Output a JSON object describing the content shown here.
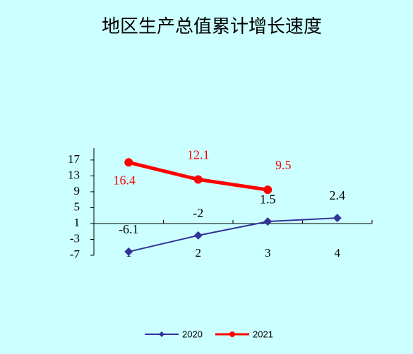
{
  "chart_data": {
    "type": "line",
    "title": "地区生产总值累计增长速度",
    "categories": [
      "1",
      "2",
      "3",
      "4"
    ],
    "series": [
      {
        "name": "2020",
        "color": "#333399",
        "values": [
          -6.1,
          -2,
          1.5,
          2.4
        ]
      },
      {
        "name": "2021",
        "color": "#ff0000",
        "values": [
          16.4,
          12.1,
          9.5,
          null
        ]
      }
    ],
    "ylim": [
      -7,
      20
    ],
    "yticks": [
      -7,
      -3,
      1,
      5,
      9,
      13,
      17
    ],
    "xaxis_at": 1,
    "legend": "bottom"
  }
}
